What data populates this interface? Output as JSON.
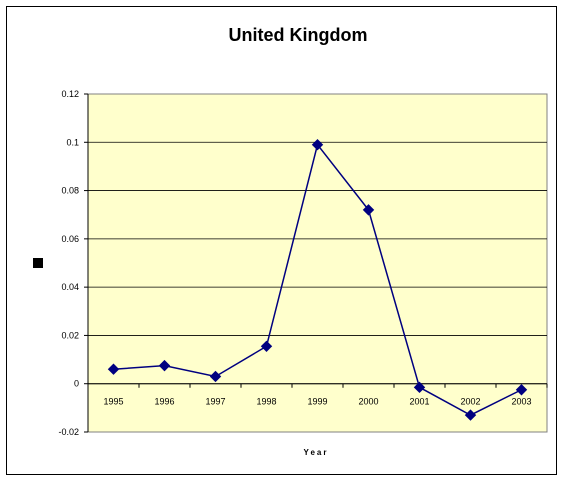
{
  "chart_data": {
    "type": "line",
    "title": "United Kingdom",
    "xlabel": "Year",
    "ylabel": "",
    "categories": [
      "1995",
      "1996",
      "1997",
      "1998",
      "1999",
      "2000",
      "2001",
      "2002",
      "2003"
    ],
    "series": [
      {
        "values": [
          0.006,
          0.0075,
          0.003,
          0.0155,
          0.099,
          0.072,
          -0.0015,
          -0.013,
          -0.0025
        ],
        "color": "#000080"
      }
    ],
    "yticks": [
      "0.12",
      "0.1",
      "0.08",
      "0.06",
      "0.04",
      "0.02",
      "0",
      "-0.02"
    ],
    "ylim": [
      -0.02,
      0.12
    ],
    "grid": true,
    "legend": "left",
    "plot_background": "#ffffcc",
    "line_color": "#000080",
    "marker": "diamond"
  }
}
